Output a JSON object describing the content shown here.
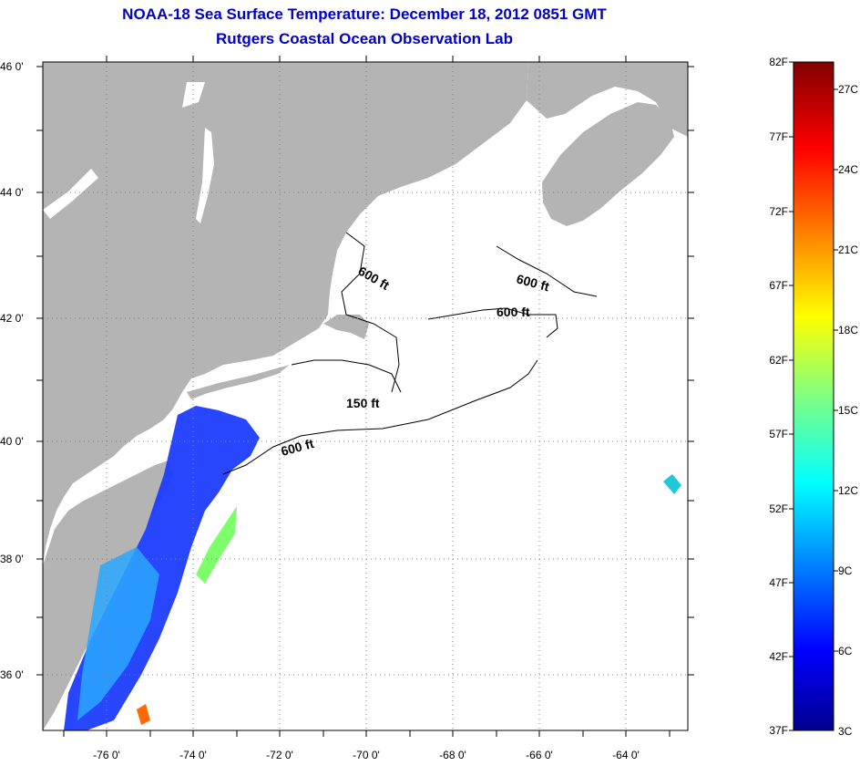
{
  "title": "NOAA-18 Sea Surface Temperature:  December 18, 2012 0851 GMT",
  "subtitle": "Rutgers Coastal Ocean Observation Lab",
  "map": {
    "lat_ticks": [
      "46 0'",
      "44 0'",
      "42 0'",
      "40 0'",
      "38 0'",
      "36 0'"
    ],
    "lon_ticks": [
      "-76 0'",
      "-74 0'",
      "-72 0'",
      "-70 0'",
      "-68 0'",
      "-66 0'",
      "-64 0'"
    ],
    "contour_labels": [
      "600 ft",
      "600 ft",
      "600 ft",
      "150 ft",
      "600 ft"
    ],
    "colors": {
      "land": "#b4b4b4",
      "ocean": "#ffffff",
      "grid": "#808080"
    }
  },
  "colorbar": {
    "fahrenheit": [
      "82F",
      "77F",
      "72F",
      "67F",
      "62F",
      "57F",
      "52F",
      "47F",
      "42F",
      "37F"
    ],
    "celsius": [
      "27C",
      "24C",
      "21C",
      "18C",
      "15C",
      "12C",
      "9C",
      "6C",
      "3C"
    ]
  }
}
